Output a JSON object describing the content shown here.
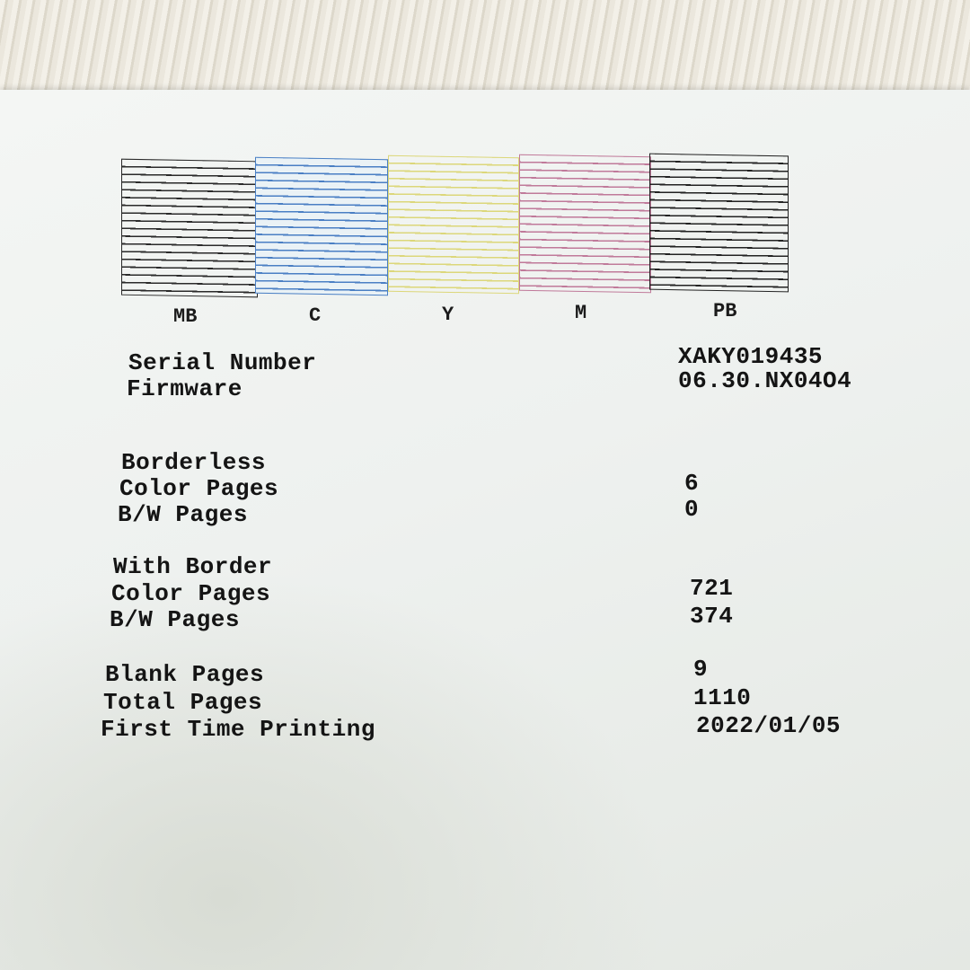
{
  "nozzle_check": {
    "patterns": [
      {
        "label": "MB",
        "color": "#2a2a2a"
      },
      {
        "label": "C",
        "color": "#4a7fc4"
      },
      {
        "label": "Y",
        "color": "#d9d56a"
      },
      {
        "label": "M",
        "color": "#c07a9a"
      },
      {
        "label": "PB",
        "color": "#222222"
      }
    ]
  },
  "info": {
    "serial_label": "Serial Number",
    "serial_value": "XAKY019435",
    "firmware_label": "Firmware",
    "firmware_value": "06.30.NX04O4"
  },
  "borderless": {
    "heading": "Borderless",
    "color_label": "Color Pages",
    "color_value": "6",
    "bw_label": "B/W Pages",
    "bw_value": "0"
  },
  "with_border": {
    "heading": "With Border",
    "color_label": "Color Pages",
    "color_value": "721",
    "bw_label": "B/W Pages",
    "bw_value": "374"
  },
  "totals": {
    "blank_label": "Blank Pages",
    "blank_value": "9",
    "total_label": "Total Pages",
    "total_value": "1110",
    "first_label": "First Time Printing",
    "first_value": "2022/01/05"
  }
}
